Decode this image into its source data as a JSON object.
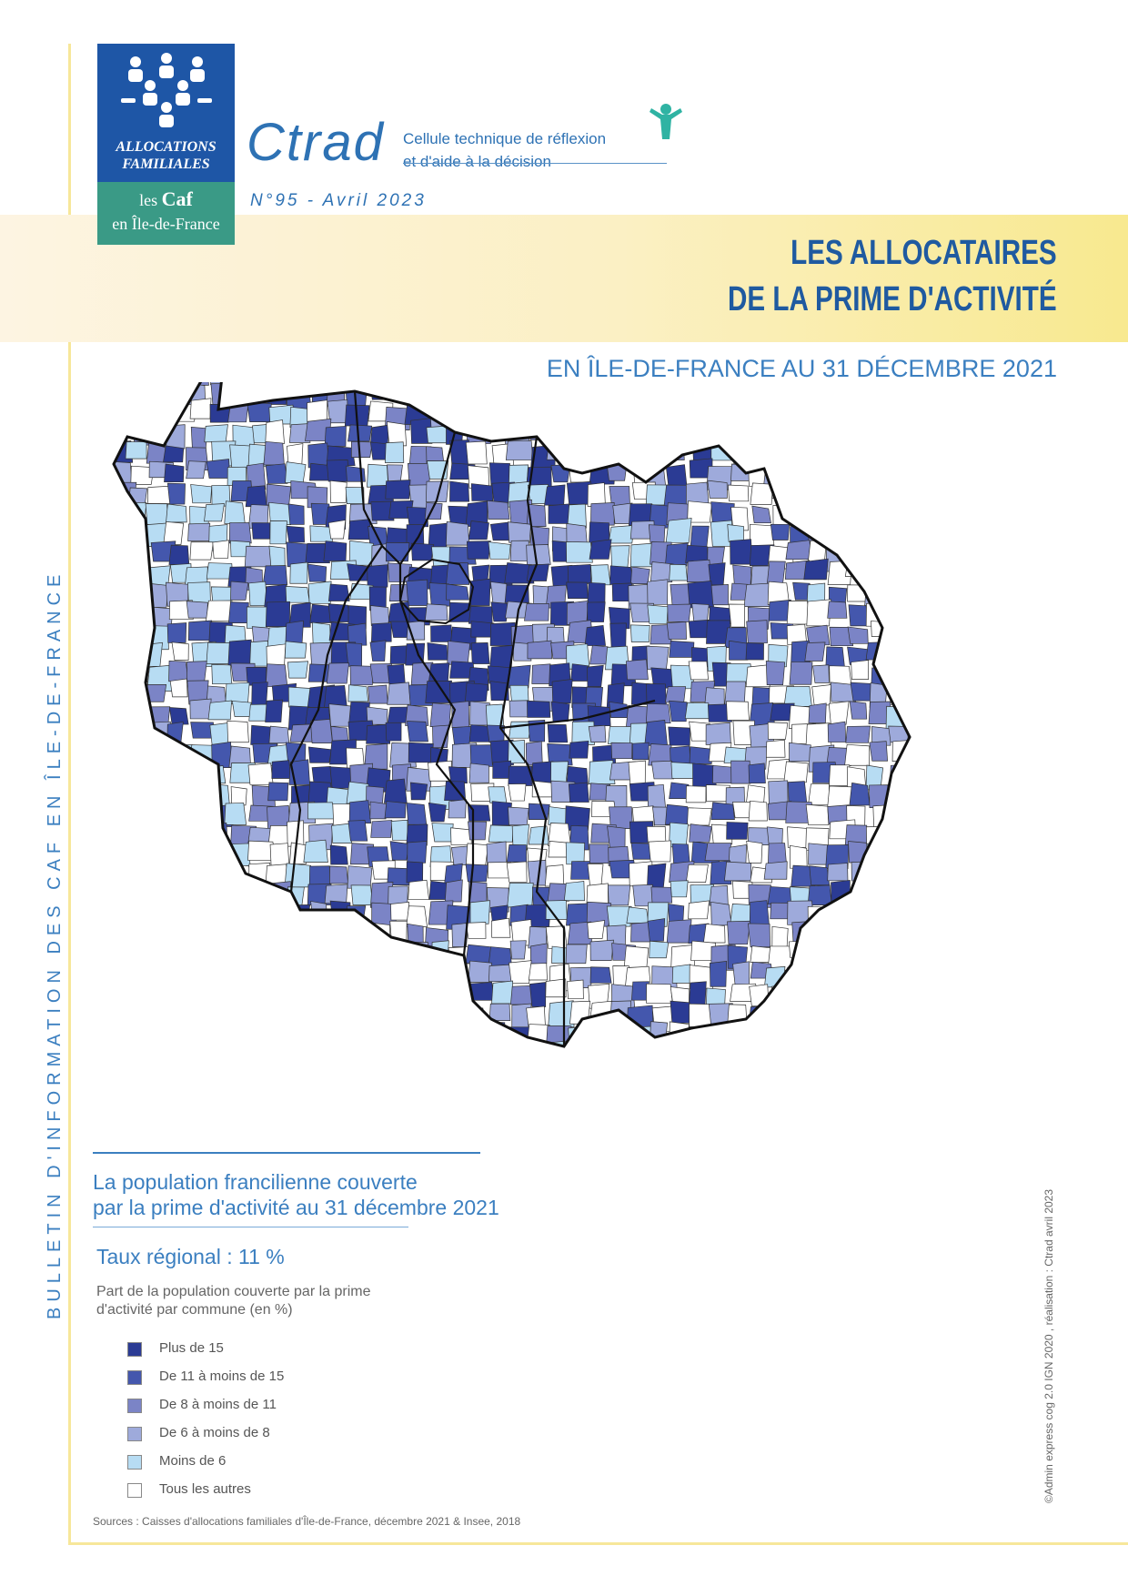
{
  "header": {
    "logo_line1": "ALLOCATIONS",
    "logo_line2": "FAMILIALES",
    "logo_les": "les",
    "logo_caf": "Caf",
    "logo_region": "en Île-de-France",
    "ctrad": "Ctrad",
    "ctrad_line1": "Cellule technique de réflexion",
    "ctrad_line2": "et d'aide à la décision",
    "issue": "N°95 - Avril 2023"
  },
  "title": {
    "line1": "LES ALLOCATAIRES",
    "line2": "DE LA PRIME D'ACTIVITÉ",
    "subtitle": "EN ÎLE-DE-FRANCE AU 31 DÉCEMBRE 2021"
  },
  "side_text": "BULLETIN D'INFORMATION DES CAF EN ÎLE-DE-FRANCE",
  "legend": {
    "title_line1": "La population francilienne couverte",
    "title_line2": "par la prime d'activité au 31 décembre 2021",
    "rate": "Taux régional : 11 %",
    "note_line1": "Part de la population couverte par la prime",
    "note_line2": "d'activité par commune (en %)",
    "items": [
      {
        "label": "Plus de 15",
        "color": "#2b3b94"
      },
      {
        "label": "De 11 à moins de 15",
        "color": "#4457ad"
      },
      {
        "label": "De 8 à moins de 11",
        "color": "#7b84c6"
      },
      {
        "label": "De 6 à moins de 8",
        "color": "#9eaadb"
      },
      {
        "label": "Moins de 6",
        "color": "#b7dcf3"
      },
      {
        "label": "Tous les autres",
        "color": "#ffffff"
      }
    ]
  },
  "sources": "Sources : Caisses d'allocations familiales d'Île-de-France, décembre 2021 & Insee, 2018",
  "credit": "©Admin express cog 2.0 IGN 2020 , réalisation : Ctrad avril 2023"
}
